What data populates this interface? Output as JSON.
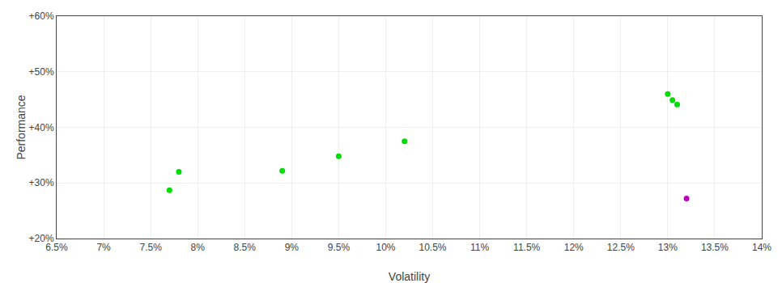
{
  "chart_data": {
    "type": "scatter",
    "xlabel": "Volatility",
    "ylabel": "Performance",
    "series": [
      {
        "color": "#00dd00",
        "x": [
          0.078,
          0.077,
          0.089,
          0.095,
          0.102,
          0.13,
          0.1305,
          0.131
        ],
        "values": [
          0.32,
          0.287,
          0.322,
          0.348,
          0.375,
          0.46,
          0.449,
          0.441
        ]
      },
      {
        "color": "#bb00bb",
        "x": [
          0.132
        ],
        "values": [
          0.272
        ]
      }
    ],
    "xlim": [
      0.065,
      0.14
    ],
    "ylim": [
      0.2,
      0.6
    ],
    "xticks": [
      {
        "value": 0.065,
        "label": "6.5%"
      },
      {
        "value": 0.07,
        "label": "7%"
      },
      {
        "value": 0.075,
        "label": "7.5%"
      },
      {
        "value": 0.08,
        "label": "8%"
      },
      {
        "value": 0.085,
        "label": "8.5%"
      },
      {
        "value": 0.09,
        "label": "9%"
      },
      {
        "value": 0.095,
        "label": "9.5%"
      },
      {
        "value": 0.1,
        "label": "10%"
      },
      {
        "value": 0.105,
        "label": "10.5%"
      },
      {
        "value": 0.11,
        "label": "11%"
      },
      {
        "value": 0.115,
        "label": "11.5%"
      },
      {
        "value": 0.12,
        "label": "12%"
      },
      {
        "value": 0.125,
        "label": "12.5%"
      },
      {
        "value": 0.13,
        "label": "13%"
      },
      {
        "value": 0.135,
        "label": "13.5%"
      },
      {
        "value": 0.14,
        "label": "14%"
      }
    ],
    "yticks": [
      {
        "value": 0.2,
        "label": "+20%"
      },
      {
        "value": 0.3,
        "label": "+30%"
      },
      {
        "value": 0.4,
        "label": "+40%"
      },
      {
        "value": 0.5,
        "label": "+50%"
      },
      {
        "value": 0.6,
        "label": "+60%"
      }
    ],
    "grid": true
  }
}
